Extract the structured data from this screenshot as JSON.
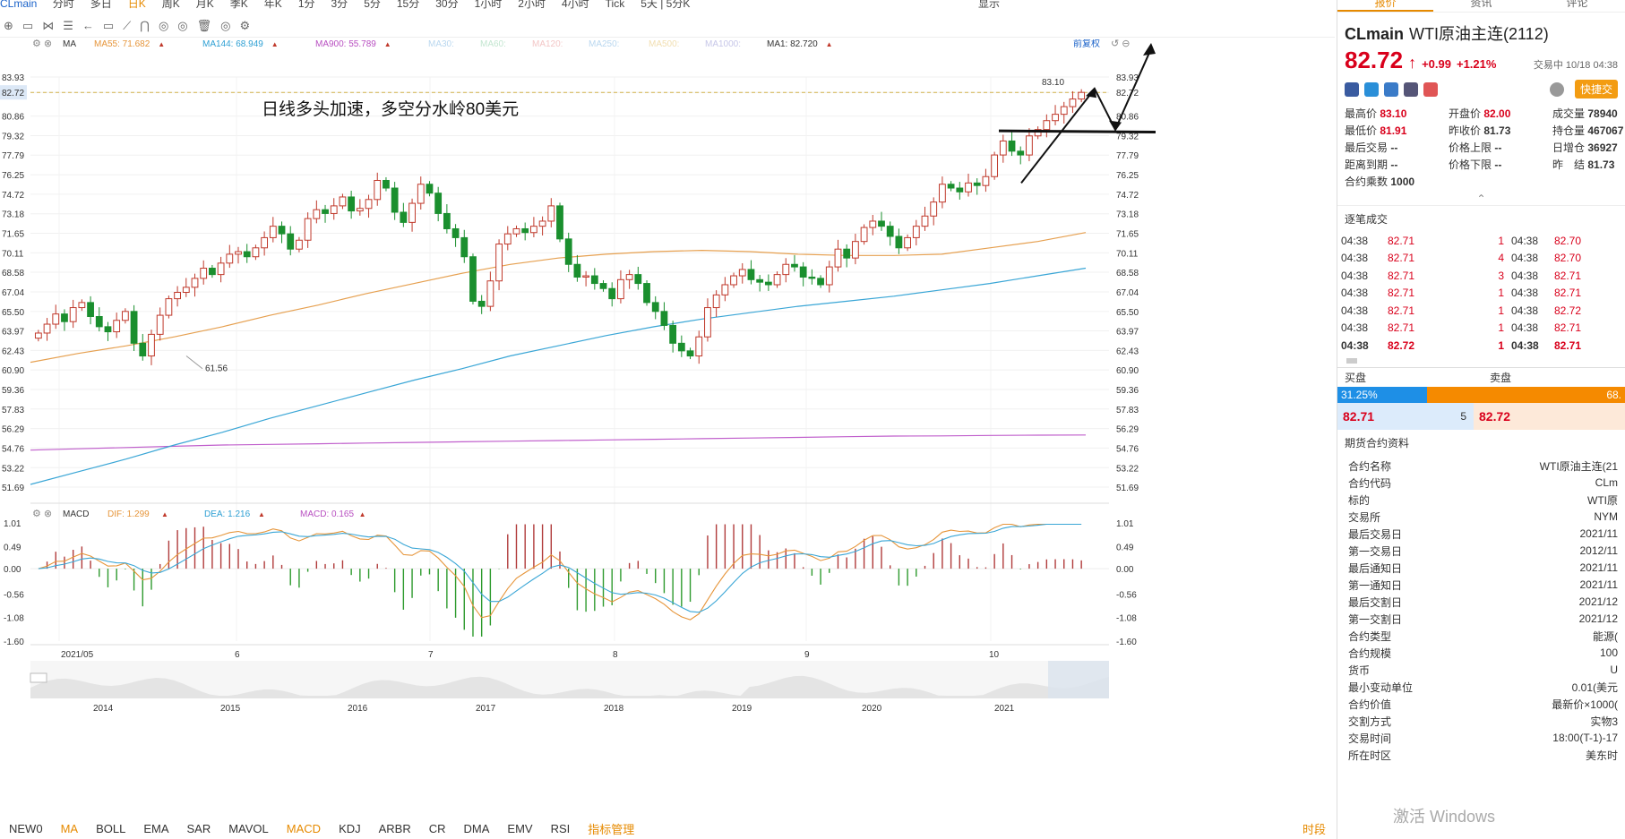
{
  "topbar": {
    "symbol": "CLmain",
    "periods": [
      "分时",
      "多日",
      "日K",
      "周K",
      "月K",
      "季K",
      "年K",
      "1分",
      "3分",
      "5分",
      "15分",
      "30分",
      "1小时",
      "2小时",
      "4小时",
      "Tick",
      "5天 | 5分K"
    ],
    "active_period": "日K",
    "right": [
      "显示"
    ]
  },
  "toolbar": {
    "items": [
      "⊕",
      "▭",
      "⋈",
      "☰",
      "←",
      "▭",
      "⟋",
      "⋂",
      "◎",
      "◎",
      "🗑",
      "◎",
      "⚙"
    ]
  },
  "ma_legend": {
    "label": "MA",
    "items": [
      {
        "text": "MA55: 71.682",
        "color": "#e6953a",
        "arrow": "▲"
      },
      {
        "text": "MA144: 68.949",
        "color": "#2d9fd3",
        "arrow": "▲"
      },
      {
        "text": "MA900: 55.789",
        "color": "#b84fc1",
        "arrow": "▲"
      },
      {
        "text": "MA30:",
        "color": "#b9d7ef",
        "arrow": ""
      },
      {
        "text": "MA60:",
        "color": "#c3e6d0",
        "arrow": ""
      },
      {
        "text": "MA120:",
        "color": "#f3c6c6",
        "arrow": ""
      },
      {
        "text": "MA250:",
        "color": "#b9d7ef",
        "arrow": ""
      },
      {
        "text": "MA500:",
        "color": "#f1deb0",
        "arrow": ""
      },
      {
        "text": "MA1000:",
        "color": "#c6c6e8",
        "arrow": ""
      },
      {
        "text": "MA1: 82.720",
        "color": "#333333",
        "arrow": "▲"
      }
    ],
    "fuquan": "前复权"
  },
  "macd_legend": {
    "label": "MACD",
    "items": [
      {
        "text": "DIF: 1.299",
        "color": "#e6953a",
        "arrow": "▲"
      },
      {
        "text": "DEA: 1.216",
        "color": "#2d9fd3",
        "arrow": "▲"
      },
      {
        "text": "MACD: 0.165",
        "color": "#b84fc1",
        "arrow": "▲"
      }
    ]
  },
  "annotation": "日线多头加速，多空分水岭80美元",
  "price_axis": [
    "83.93",
    "82.72",
    "80.86",
    "79.32",
    "77.79",
    "76.25",
    "74.72",
    "73.18",
    "71.65",
    "70.11",
    "68.58",
    "67.04",
    "65.50",
    "63.97",
    "62.43",
    "60.90",
    "59.36",
    "57.83",
    "56.29",
    "54.76",
    "53.22",
    "51.69"
  ],
  "macd_axis": [
    "1.01",
    "0.49",
    "0.00",
    "-0.56",
    "-1.08",
    "-1.60"
  ],
  "date_axis": [
    "2021/05",
    "6",
    "7",
    "8",
    "9",
    "10"
  ],
  "overview_axis": [
    "2014",
    "2015",
    "2016",
    "2017",
    "2018",
    "2019",
    "2020",
    "2021"
  ],
  "high_label": "83.10",
  "low_label": "61.56",
  "last_price_tag": "82.72",
  "bottom_tabs": [
    "NEW0",
    "MA",
    "BOLL",
    "EMA",
    "SAR",
    "MAVOL",
    "MACD",
    "KDJ",
    "ARBR",
    "CR",
    "DMA",
    "EMV",
    "RSI",
    "指标管理"
  ],
  "bottom_active": [
    "MA",
    "MACD"
  ],
  "bottom_right": "时段",
  "panel": {
    "tabs": [
      "报价",
      "资讯",
      "评论"
    ],
    "code": "CLmain",
    "name": "WTI原油主连(2112)",
    "price": "82.72",
    "arrow": "↑",
    "change": "+0.99",
    "change_pct": "+1.21%",
    "trade_time": "交易中 10/18 04:38",
    "fast_btn": "快捷交",
    "quotes": [
      {
        "label": "最高价",
        "value": "83.10",
        "color": "red"
      },
      {
        "label": "开盘价",
        "value": "82.00",
        "color": "red"
      },
      {
        "label": "成交量",
        "value": "78940",
        "color": "dark"
      },
      {
        "label": "最低价",
        "value": "81.91",
        "color": "red"
      },
      {
        "label": "昨收价",
        "value": "81.73",
        "color": "dark"
      },
      {
        "label": "持仓量",
        "value": "467067",
        "color": "dark"
      },
      {
        "label": "最后交易",
        "value": "--",
        "color": "dark"
      },
      {
        "label": "价格上限",
        "value": "--",
        "color": "dark"
      },
      {
        "label": "日增仓",
        "value": "36927",
        "color": "dark"
      },
      {
        "label": "距离到期",
        "value": "--",
        "color": "dark"
      },
      {
        "label": "价格下限",
        "value": "--",
        "color": "dark"
      },
      {
        "label": "昨　结",
        "value": "81.73",
        "color": "dark"
      },
      {
        "label": "合约乘数",
        "value": "1000",
        "color": "dark"
      }
    ],
    "trades_title": "逐笔成交",
    "trades": [
      [
        "04:38",
        "82.71",
        "1",
        "04:38",
        "82.70"
      ],
      [
        "04:38",
        "82.71",
        "4",
        "04:38",
        "82.70"
      ],
      [
        "04:38",
        "82.71",
        "3",
        "04:38",
        "82.71"
      ],
      [
        "04:38",
        "82.71",
        "1",
        "04:38",
        "82.71"
      ],
      [
        "04:38",
        "82.71",
        "1",
        "04:38",
        "82.72"
      ],
      [
        "04:38",
        "82.71",
        "1",
        "04:38",
        "82.71"
      ],
      [
        "04:38",
        "82.72",
        "1",
        "04:38",
        "82.71"
      ]
    ],
    "buy_label": "买盘",
    "sell_label": "卖盘",
    "buy_pct": "31.25%",
    "buy_fraction": 0.3125,
    "sell_pct": "68.",
    "buy_price": "82.71",
    "buy_vol": "5",
    "sell_price": "82.72",
    "info_title": "期货合约资料",
    "info": [
      [
        "合约名称",
        "WTI原油主连(21"
      ],
      [
        "合约代码",
        "CLm"
      ],
      [
        "标的",
        "WTI原"
      ],
      [
        "交易所",
        "NYM"
      ],
      [
        "最后交易日",
        "2021/11"
      ],
      [
        "第一交易日",
        "2012/11"
      ],
      [
        "最后通知日",
        "2021/11"
      ],
      [
        "第一通知日",
        "2021/11"
      ],
      [
        "最后交割日",
        "2021/12"
      ],
      [
        "第一交割日",
        "2021/12"
      ],
      [
        "合约类型",
        "能源("
      ],
      [
        "合约规模",
        "100"
      ],
      [
        "货币",
        "U"
      ],
      [
        "最小变动单位",
        "0.01(美元"
      ],
      [
        "合约价值",
        "最新价×1000("
      ],
      [
        "交割方式",
        "实物3"
      ],
      [
        "交易时间",
        "18:00(T-1)-17"
      ],
      [
        "所在时区",
        "美东时"
      ]
    ]
  },
  "watermark": "激活 Windows",
  "colors": {
    "up": "#c0392b",
    "down": "#1a8f2e",
    "accent": "#e68a00"
  },
  "chart_data": {
    "type": "candlestick",
    "ylim": [
      51.69,
      83.93
    ],
    "last": 82.72,
    "ma55": [
      61.5,
      62.2,
      62.8,
      63.5,
      64.3,
      65.2,
      66.0,
      66.9,
      67.7,
      68.5,
      69.2,
      69.7,
      70.0,
      70.2,
      70.3,
      70.2,
      70.0,
      69.9,
      69.9,
      70.0,
      70.5,
      71.0,
      71.7
    ],
    "ma144": [
      51.9,
      52.9,
      53.9,
      55.0,
      56.0,
      57.1,
      58.1,
      59.1,
      60.1,
      61.0,
      62.0,
      62.8,
      63.6,
      64.3,
      64.9,
      65.4,
      65.9,
      66.3,
      66.7,
      67.2,
      67.7,
      68.3,
      68.9
    ],
    "ma900": [
      54.6,
      54.7,
      54.8,
      54.9,
      55.0,
      55.05,
      55.1,
      55.15,
      55.2,
      55.25,
      55.3,
      55.35,
      55.4,
      55.45,
      55.5,
      55.55,
      55.6,
      55.65,
      55.7,
      55.72,
      55.75,
      55.77,
      55.79
    ],
    "closes": [
      63.8,
      64.5,
      65.3,
      64.7,
      65.8,
      66.2,
      65.1,
      64.3,
      63.9,
      64.8,
      65.5,
      63.0,
      62.0,
      63.7,
      65.2,
      66.5,
      67.0,
      67.4,
      68.1,
      68.9,
      68.4,
      69.3,
      70.0,
      70.2,
      69.8,
      70.5,
      71.3,
      72.2,
      71.6,
      70.4,
      71.1,
      72.8,
      73.5,
      73.2,
      73.8,
      74.5,
      73.4,
      73.6,
      74.3,
      75.8,
      75.2,
      73.3,
      72.5,
      74.0,
      75.5,
      74.8,
      73.2,
      72.0,
      71.3,
      69.8,
      66.3,
      65.9,
      67.9,
      70.8,
      71.6,
      72.0,
      71.7,
      72.2,
      72.6,
      73.8,
      71.2,
      69.2,
      68.2,
      68.3,
      67.7,
      67.3,
      66.5,
      68.0,
      68.4,
      67.7,
      66.2,
      65.5,
      64.4,
      63.0,
      62.4,
      62.0,
      63.5,
      65.8,
      66.8,
      67.6,
      68.3,
      68.8,
      68.0,
      67.8,
      67.6,
      68.4,
      69.2,
      69.0,
      68.2,
      68.1,
      67.6,
      69.0,
      70.4,
      69.7,
      71.0,
      72.1,
      72.6,
      72.2,
      71.4,
      70.5,
      71.3,
      72.2,
      73.0,
      74.1,
      75.5,
      75.2,
      74.9,
      75.6,
      75.4,
      76.1,
      77.8,
      78.9,
      78.1,
      77.8,
      79.3,
      79.8,
      80.5,
      81.0,
      81.6,
      82.2,
      82.72
    ]
  }
}
